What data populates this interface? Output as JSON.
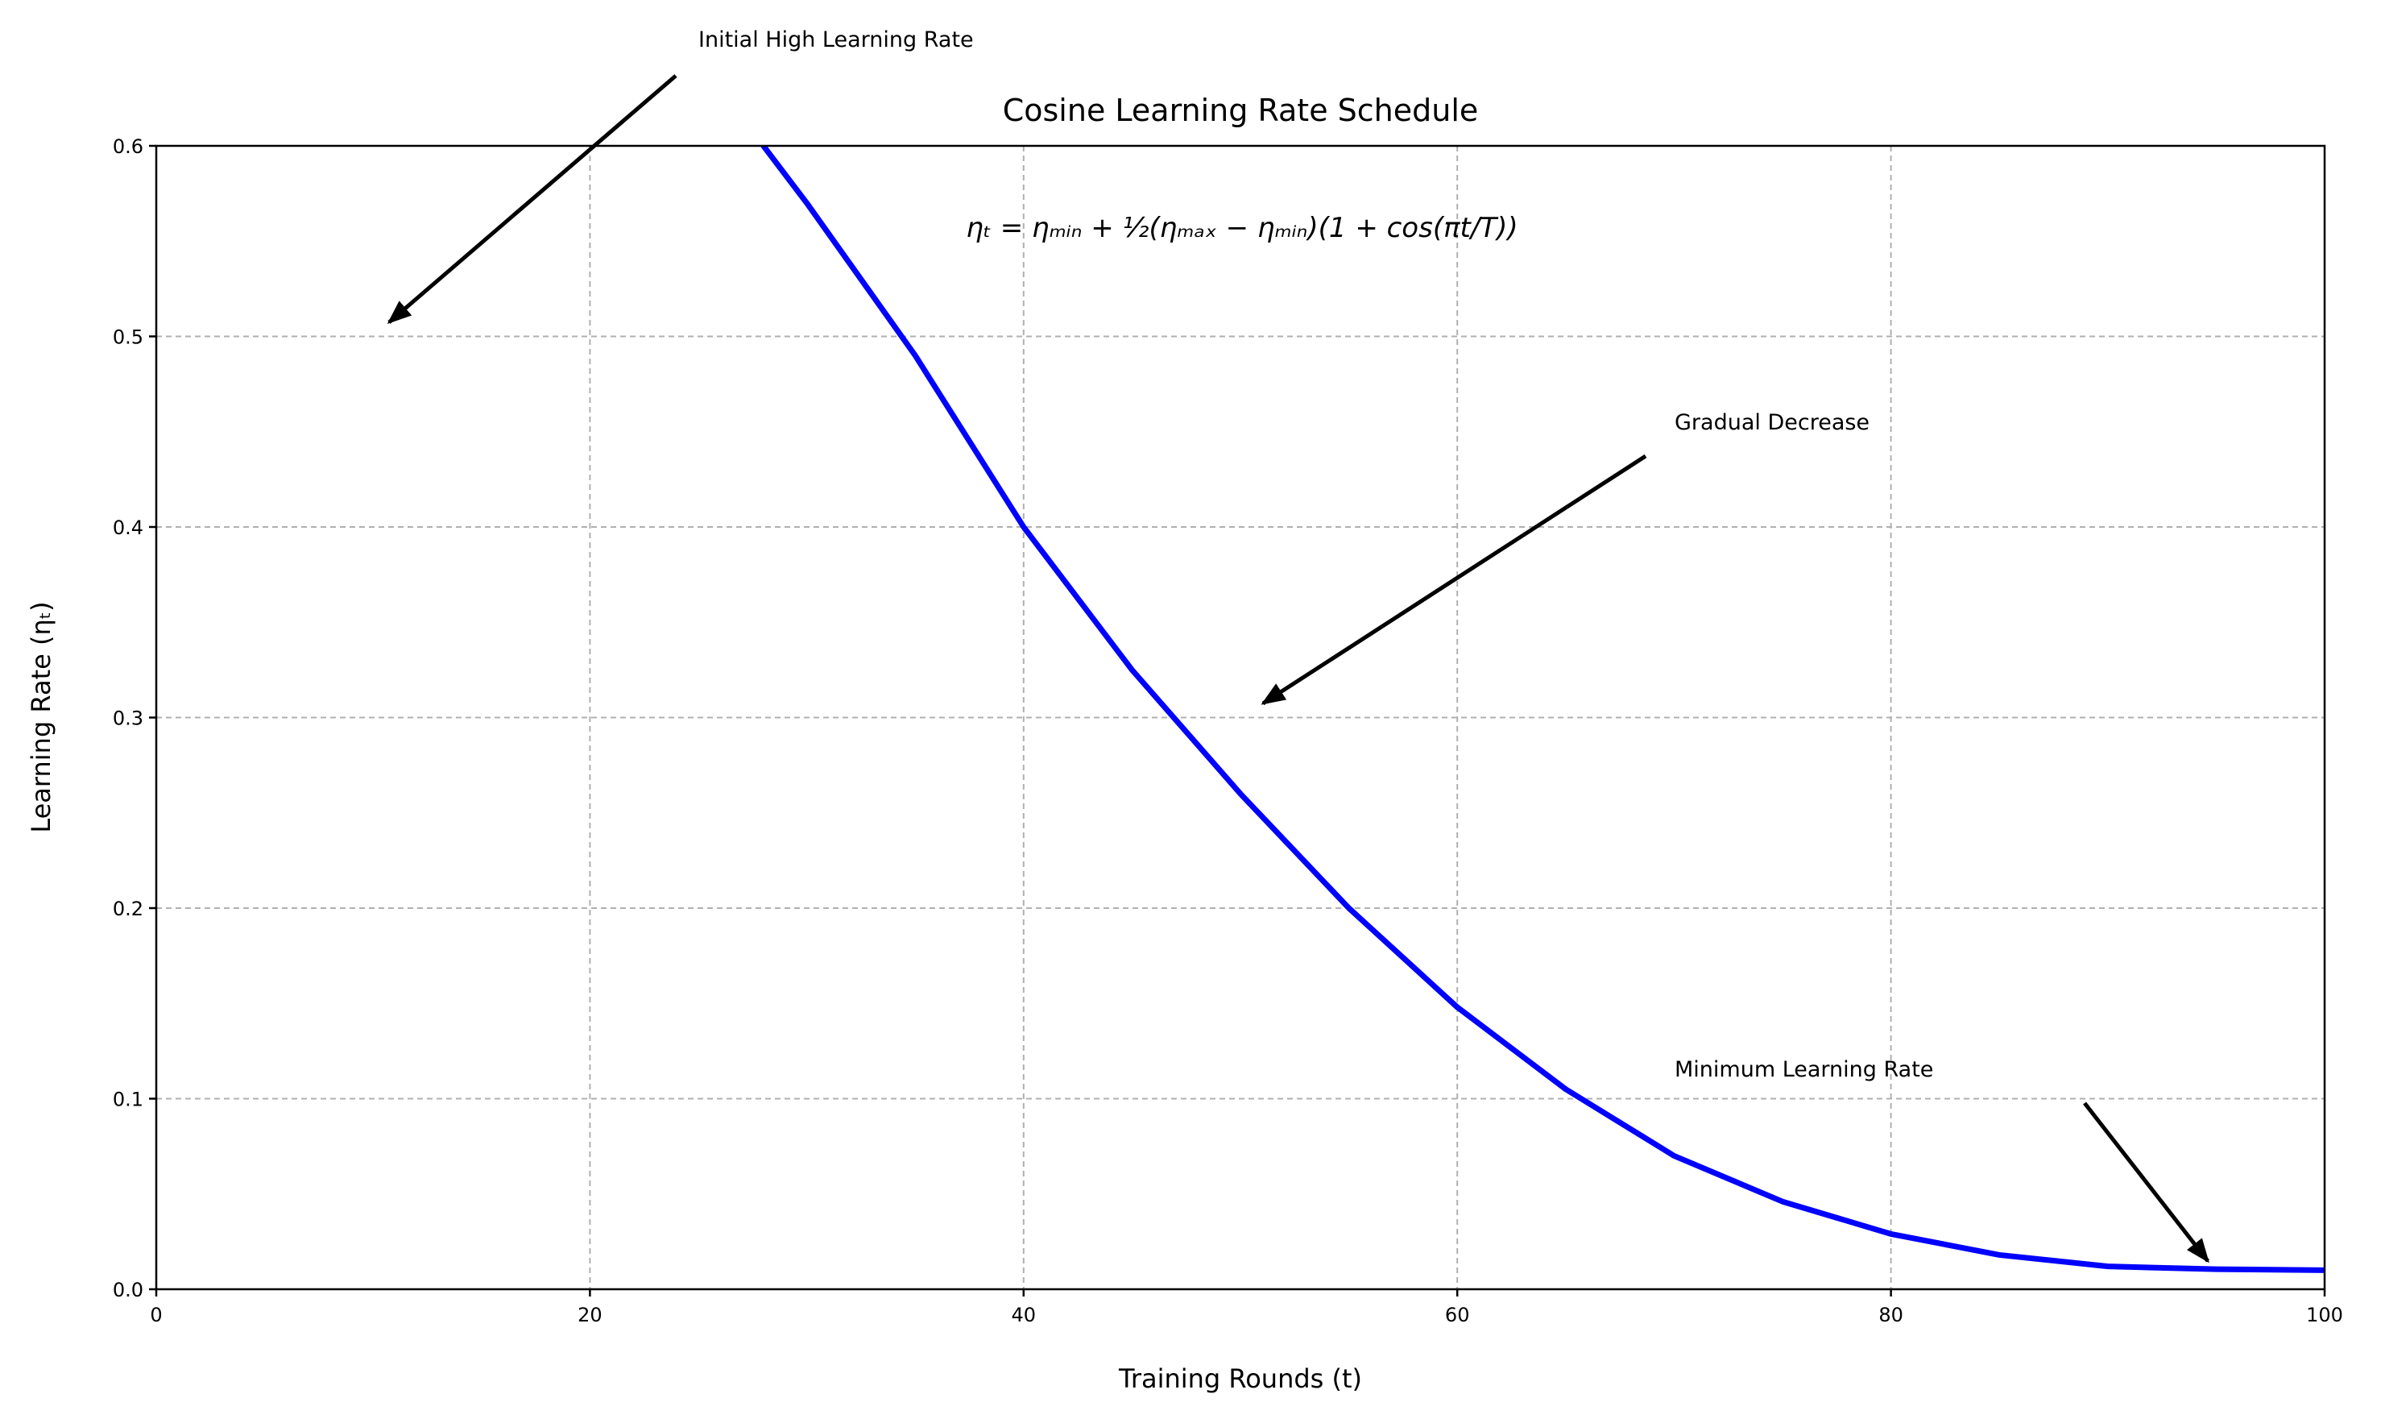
{
  "chart_data": {
    "type": "line",
    "title": "Cosine Learning Rate Schedule",
    "formula": "ηₜ = ηₘᵢₙ + ½(ηₘₐₓ − ηₘᵢₙ)(1 + cos(πt/T))",
    "xlabel": "Training Rounds (t)",
    "ylabel": "Learning Rate (ηₜ)",
    "x": [
      28,
      30,
      35,
      40,
      45,
      50,
      55,
      60,
      65,
      70,
      75,
      80,
      85,
      90,
      95,
      100
    ],
    "values": [
      0.6,
      0.57,
      0.49,
      0.4,
      0.325,
      0.26,
      0.2,
      0.148,
      0.105,
      0.07,
      0.046,
      0.029,
      0.018,
      0.012,
      0.0105,
      0.01
    ],
    "color": "#0000ff",
    "xlim": [
      0,
      100
    ],
    "xticks": [
      0,
      20,
      40,
      60,
      80,
      100
    ],
    "ylim": [
      0,
      0.6
    ],
    "yticks": [
      {
        "value": 0,
        "label": "0.0"
      },
      0.1,
      0.2,
      0.3,
      0.4,
      0.5,
      0.6
    ],
    "grid": true,
    "annotations": [
      "Initial High Learning Rate",
      "Gradual Decrease",
      "Minimum Learning Rate"
    ]
  }
}
